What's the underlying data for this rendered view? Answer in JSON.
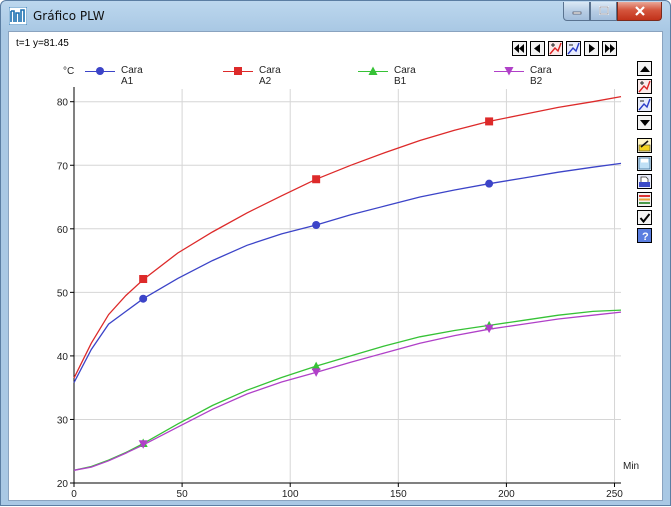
{
  "window": {
    "title": "Gráfico PLW",
    "app_icon": "plw-chart-icon",
    "caption_buttons": [
      "minimize-icon",
      "maximize-icon",
      "close-icon"
    ]
  },
  "status": {
    "readout": "t=1 y=81.45"
  },
  "toolbar": {
    "nav_buttons": [
      "first-icon",
      "prev-icon",
      "zoom-in-icon",
      "zoom-out-icon",
      "next-icon",
      "last-icon"
    ],
    "side_buttons": [
      "scroll-up-icon",
      "zoom-in-icon",
      "zoom-out-icon",
      "scroll-down-icon",
      "edit-icon",
      "save-icon",
      "print-icon",
      "series-colors-icon",
      "check-icon",
      "help-icon"
    ]
  },
  "colors": {
    "cara_a1": "#3c44c8",
    "cara_a2": "#dd2a2a",
    "cara_b1": "#36c236",
    "cara_b2": "#b040c8",
    "grid": "#d6d6d6",
    "axis": "#000000"
  },
  "chart_data": {
    "type": "line",
    "title": "",
    "xlabel": "Min",
    "ylabel": "°C",
    "xlim": [
      0,
      253
    ],
    "ylim": [
      20,
      82
    ],
    "x_ticks": [
      0,
      50,
      100,
      150,
      200,
      250
    ],
    "y_ticks": [
      20,
      30,
      40,
      50,
      60,
      70,
      80
    ],
    "grid_x": [
      50,
      100,
      150,
      200,
      250
    ],
    "grid_y": [
      30,
      40,
      50,
      60,
      70,
      80
    ],
    "legend_position": "top",
    "series": [
      {
        "name": "Cara A1",
        "marker": "circle",
        "x": [
          0,
          8,
          16,
          24,
          32,
          48,
          64,
          80,
          96,
          112,
          128,
          144,
          160,
          176,
          192,
          208,
          224,
          240,
          253
        ],
        "y": [
          35.8,
          41,
          45,
          47,
          49,
          52.2,
          55,
          57.4,
          59.2,
          60.6,
          62.2,
          63.6,
          65,
          66.1,
          67.1,
          68,
          68.9,
          69.7,
          70.3
        ],
        "marker_x": [
          32,
          112,
          192
        ],
        "marker_y": [
          49,
          60.6,
          67.1
        ]
      },
      {
        "name": "Cara A2",
        "marker": "square",
        "x": [
          0,
          8,
          16,
          24,
          32,
          48,
          64,
          80,
          96,
          112,
          128,
          144,
          160,
          176,
          192,
          208,
          224,
          240,
          253
        ],
        "y": [
          36.5,
          42,
          46.5,
          49.5,
          52,
          56.2,
          59.5,
          62.5,
          65.2,
          67.8,
          70,
          72,
          73.9,
          75.5,
          76.9,
          78,
          79.1,
          80,
          80.8
        ],
        "marker_x": [
          32,
          112,
          192
        ],
        "marker_y": [
          52.1,
          67.8,
          76.9
        ]
      },
      {
        "name": "Cara B1",
        "marker": "triangle-up",
        "x": [
          0,
          8,
          16,
          24,
          32,
          48,
          64,
          80,
          96,
          112,
          128,
          144,
          160,
          176,
          192,
          208,
          224,
          240,
          253
        ],
        "y": [
          22,
          22.6,
          23.6,
          24.8,
          26.2,
          29.3,
          32.2,
          34.6,
          36.6,
          38.4,
          40,
          41.6,
          43,
          44,
          44.8,
          45.6,
          46.4,
          47,
          47.2
        ],
        "marker_x": [
          32,
          112,
          192
        ],
        "marker_y": [
          26.3,
          38.4,
          44.8
        ]
      },
      {
        "name": "Cara B2",
        "marker": "triangle-down",
        "x": [
          0,
          8,
          16,
          24,
          32,
          48,
          64,
          80,
          96,
          112,
          128,
          144,
          160,
          176,
          192,
          208,
          224,
          240,
          253
        ],
        "y": [
          22,
          22.5,
          23.5,
          24.7,
          26,
          28.8,
          31.6,
          34,
          35.9,
          37.4,
          39,
          40.5,
          42,
          43.2,
          44.2,
          45,
          45.8,
          46.4,
          46.9
        ],
        "marker_x": [
          32,
          112,
          192
        ],
        "marker_y": [
          26.1,
          37.4,
          44.3
        ]
      }
    ]
  }
}
